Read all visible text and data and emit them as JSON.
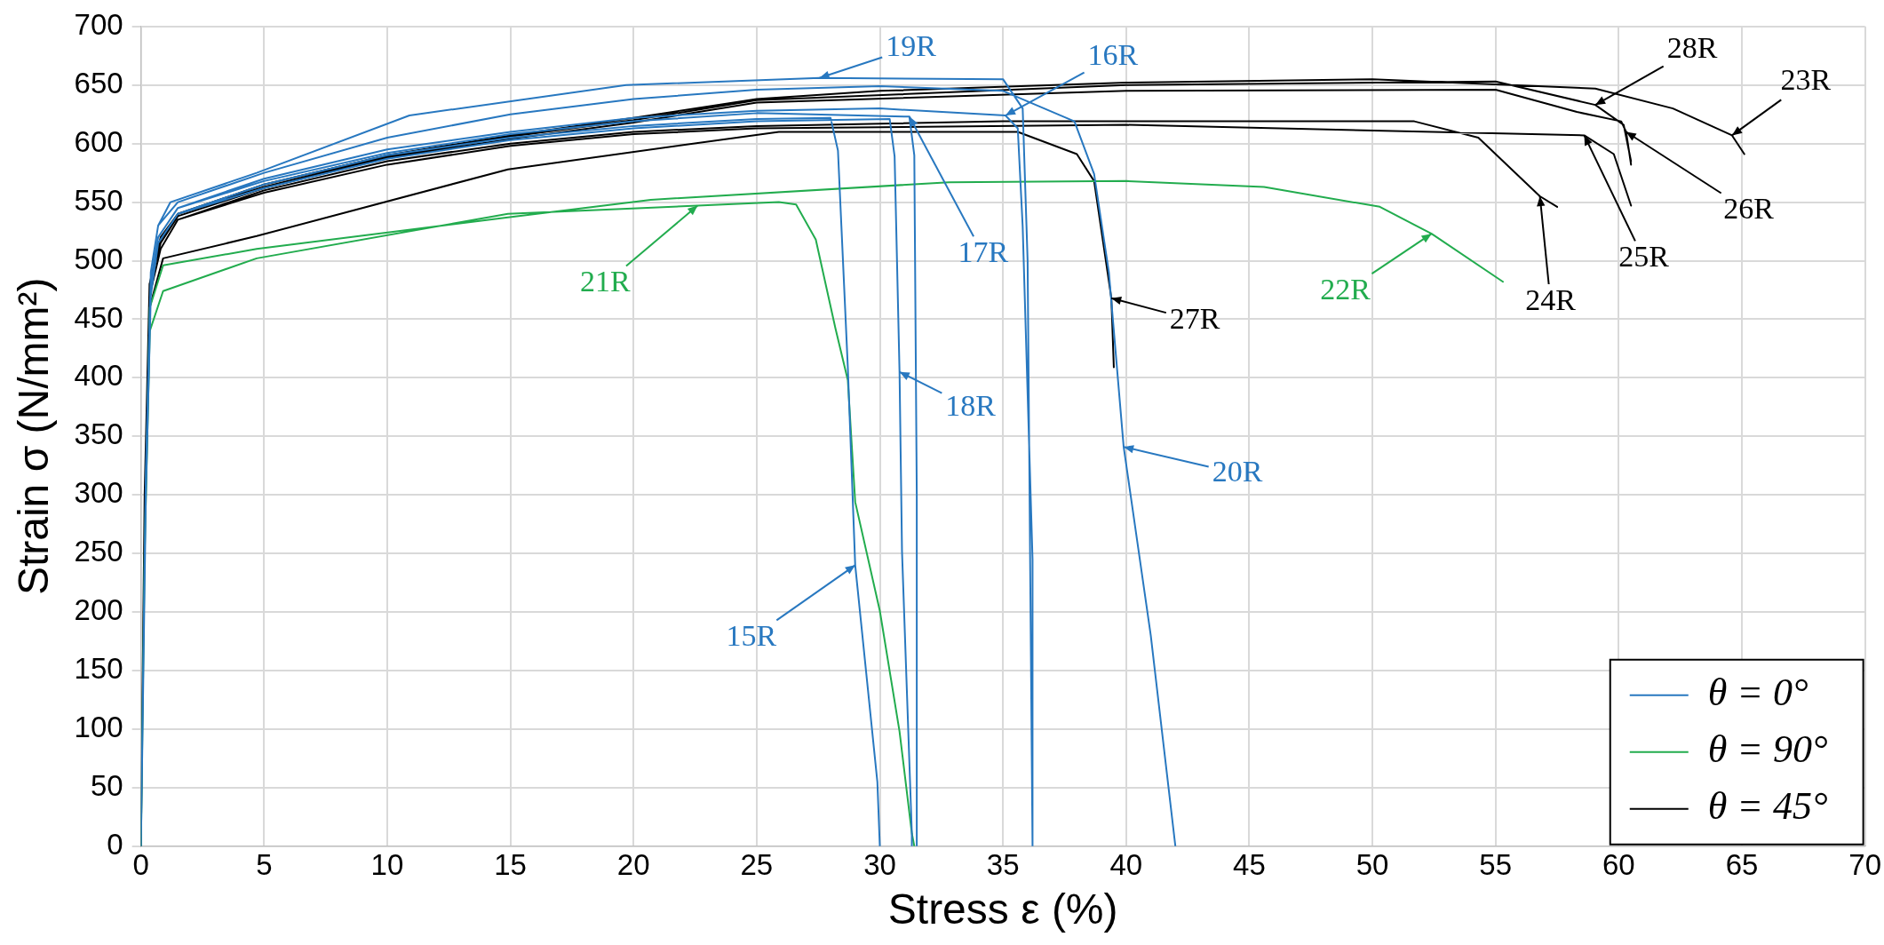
{
  "chart_data": {
    "type": "line",
    "xlabel": "Stress ε (%)",
    "ylabel": "Strain σ (N/mm²)",
    "xlim": [
      0,
      70
    ],
    "xticks": [
      0,
      5,
      10,
      15,
      20,
      25,
      30,
      35,
      40,
      45,
      50,
      55,
      60,
      65,
      70
    ],
    "ylim": [
      0,
      700
    ],
    "yticks": [
      0,
      50,
      100,
      150,
      200,
      250,
      300,
      350,
      400,
      450,
      500,
      550,
      600,
      650,
      700
    ],
    "grid": true,
    "legend": "bottom right",
    "marker": "none",
    "line_style": "solid",
    "series": [
      {
        "name": "θ = 0°",
        "color": "#2878c0",
        "x": [
          0,
          0.2,
          0.4,
          0.7,
          1.5,
          5,
          10,
          15,
          20,
          25,
          28,
          28.3,
          28.7,
          29,
          29.9,
          30,
          null,
          0,
          0.2,
          0.4,
          0.7,
          1.5,
          5,
          10,
          15,
          20,
          25,
          30,
          35.1,
          35.6,
          35.8,
          36.2,
          36.2,
          null,
          0,
          0.2,
          0.4,
          0.7,
          1.5,
          5,
          10,
          15,
          20,
          25,
          31.2,
          31.4,
          31.5,
          31.5,
          null,
          0,
          0.2,
          0.4,
          0.7,
          1.5,
          5,
          10,
          15,
          20,
          25,
          30.4,
          30.6,
          30.8,
          30.9,
          31.3,
          31.3,
          null,
          0,
          0.2,
          0.4,
          0.7,
          1.2,
          4.7,
          10.9,
          19.7,
          27.55,
          35,
          35.8,
          36,
          36.2,
          null,
          0,
          0.2,
          0.4,
          0.7,
          1.5,
          5,
          10,
          15,
          20,
          25,
          30,
          35,
          37.9,
          38.7,
          39.3,
          39.9,
          41,
          42
        ],
        "values": [
          0,
          300,
          470,
          515,
          540,
          565,
          590,
          605,
          615,
          621,
          622,
          594,
          409,
          240,
          55,
          0,
          null,
          0,
          300,
          480,
          520,
          545,
          570,
          595,
          610,
          622,
          628,
          630,
          624,
          613,
          529,
          245,
          0,
          null,
          0,
          300,
          480,
          520,
          545,
          568,
          592,
          608,
          619,
          626,
          623,
          590,
          300,
          0,
          null,
          0,
          300,
          470,
          515,
          540,
          562,
          587,
          603,
          613,
          619,
          621,
          589,
          405,
          252,
          11,
          0,
          null,
          0,
          320,
          490,
          530,
          550,
          575,
          624,
          650,
          656,
          655,
          630,
          500,
          0,
          null,
          0,
          320,
          490,
          530,
          550,
          575,
          605,
          625,
          638,
          646,
          649,
          645,
          619,
          574,
          490,
          341,
          180,
          0
        ]
      },
      {
        "name": "θ = 90°",
        "color": "#22ac4e",
        "x": [
          0,
          0.15,
          0.36,
          0.9,
          4.7,
          14.9,
          22.6,
          25.9,
          26.6,
          27.4,
          28.2,
          28.7,
          29,
          30,
          30.8,
          31.3,
          31.4,
          null,
          0,
          0.15,
          0.36,
          0.9,
          4.7,
          14.9,
          20.7,
          32.8,
          40,
          45.6,
          50.3,
          52.4,
          55.3
        ],
        "values": [
          0,
          250,
          440,
          474,
          502,
          540,
          547,
          550,
          548,
          518,
          442,
          398,
          294,
          201,
          98,
          11,
          0,
          null,
          0,
          250,
          460,
          496,
          510,
          537,
          552,
          567,
          568,
          563,
          546,
          523,
          482
        ]
      },
      {
        "name": "θ = 45°",
        "color": "#000000",
        "x": [
          0,
          0.15,
          0.35,
          0.8,
          1.5,
          5,
          10,
          15,
          20,
          25,
          30,
          40,
          50,
          59.05,
          62.2,
          64.6,
          65.1,
          null,
          0,
          0.15,
          0.35,
          0.8,
          1.5,
          5,
          10,
          15,
          20,
          25,
          35,
          51.7,
          54.3,
          56.8,
          57.5,
          null,
          0,
          0.15,
          0.35,
          0.8,
          1.5,
          5,
          10,
          15,
          20,
          25,
          40,
          58.6,
          59.8,
          60.5,
          null,
          0,
          0.15,
          0.35,
          0.8,
          1.5,
          5,
          10,
          15,
          20,
          25,
          40,
          55,
          58.3,
          60.1,
          60.3,
          60.5,
          null,
          0,
          0.15,
          0.35,
          0.9,
          4.7,
          14.9,
          25.9,
          35.6,
          38,
          38.7,
          39.4,
          39.5,
          null,
          0,
          0.15,
          0.35,
          0.8,
          1.5,
          5,
          10,
          15,
          20,
          25,
          40,
          55,
          59.05,
          60.2,
          60.5
        ],
        "values": [
          0,
          300,
          480,
          520,
          540,
          565,
          590,
          607,
          622,
          638,
          645,
          652,
          655,
          647,
          630,
          607,
          591,
          null,
          0,
          300,
          470,
          510,
          535,
          560,
          585,
          600,
          610,
          615,
          619,
          619,
          605,
          555,
          546,
          null,
          0,
          300,
          470,
          510,
          535,
          558,
          582,
          598,
          608,
          613,
          616,
          607,
          591,
          547,
          null,
          0,
          300,
          480,
          515,
          538,
          562,
          588,
          604,
          618,
          635,
          645,
          646,
          627,
          619,
          610,
          582,
          null,
          0,
          300,
          460,
          502,
          521,
          578,
          610,
          610,
          591,
          568,
          468,
          409,
          null,
          0,
          300,
          480,
          518,
          540,
          563,
          589,
          606,
          620,
          637,
          650,
          653,
          633,
          616,
          585
        ]
      }
    ],
    "annotations": [
      {
        "text": "19R",
        "x": 27.55,
        "y": 656
      },
      {
        "text": "16R",
        "x": 35.1,
        "y": 624
      },
      {
        "text": "17R",
        "x": 31.2,
        "y": 623
      },
      {
        "text": "18R",
        "x": 30.8,
        "y": 405
      },
      {
        "text": "15R",
        "x": 29,
        "y": 240
      },
      {
        "text": "20R",
        "x": 39.9,
        "y": 341
      },
      {
        "text": "21R",
        "x": 22.6,
        "y": 547
      },
      {
        "text": "22R",
        "x": 52.4,
        "y": 523
      },
      {
        "text": "27R",
        "x": 39.4,
        "y": 468
      },
      {
        "text": "24R",
        "x": 56.8,
        "y": 555
      },
      {
        "text": "25R",
        "x": 58.6,
        "y": 607
      },
      {
        "text": "26R",
        "x": 60.3,
        "y": 610
      },
      {
        "text": "28R",
        "x": 59.05,
        "y": 633
      },
      {
        "text": "23R",
        "x": 64.6,
        "y": 607
      }
    ]
  }
}
